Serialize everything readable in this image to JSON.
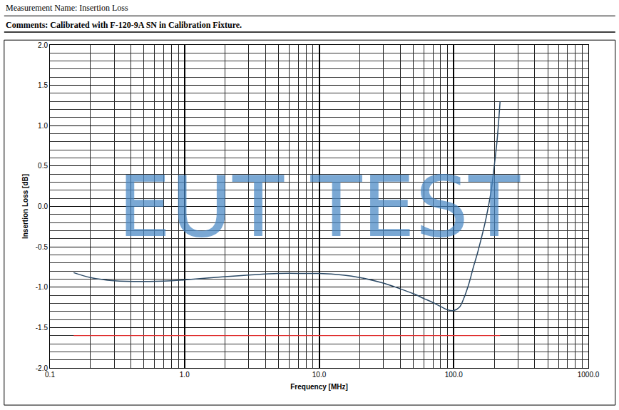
{
  "chart_data": {
    "type": "line",
    "title": "Measurement Name: Insertion Loss",
    "subtitle": "Comments: Calibrated with F-120-9A SN in Calibration Fixture.",
    "x_label": "Frequency [MHz]",
    "y_label": "Insertion Loss [dB]",
    "log": "x",
    "grid": true,
    "xlim": [
      0.1,
      1000
    ],
    "xticks": [
      0.1,
      {
        "value": 1,
        "label": "1.0"
      },
      {
        "value": 10,
        "label": "10.0"
      },
      {
        "value": 100,
        "label": "100.0"
      },
      {
        "value": 1000,
        "label": "1000.0"
      }
    ],
    "ylim": [
      -2,
      2
    ],
    "yticks": [
      {
        "value": -2,
        "label": "-2.0"
      },
      {
        "value": -1.5,
        "label": "-1.5"
      },
      {
        "value": -1,
        "label": "-1.0"
      },
      {
        "value": -0.5,
        "label": "-0.5"
      },
      {
        "value": 0,
        "label": "0.0"
      },
      {
        "value": 0.5,
        "label": "0.5"
      },
      {
        "value": 1,
        "label": "1.0"
      },
      {
        "value": 1.5,
        "label": "1.5"
      },
      {
        "value": 2,
        "label": "2.0"
      }
    ],
    "series": [
      {
        "color": "#2c4a66",
        "x": [
          0.15,
          0.2,
          0.3,
          0.5,
          0.8,
          1,
          2,
          3,
          5,
          8,
          10,
          15,
          20,
          30,
          40,
          50,
          60,
          70,
          80,
          90,
          100,
          110,
          120,
          130,
          140,
          150,
          160,
          170,
          180,
          190,
          200,
          210,
          221
        ],
        "values": [
          -0.82,
          -0.88,
          -0.92,
          -0.93,
          -0.92,
          -0.91,
          -0.87,
          -0.85,
          -0.83,
          -0.83,
          -0.83,
          -0.85,
          -0.88,
          -0.95,
          -1.02,
          -1.08,
          -1.14,
          -1.19,
          -1.24,
          -1.28,
          -1.29,
          -1.25,
          -1.12,
          -0.95,
          -0.75,
          -0.58,
          -0.4,
          -0.22,
          -0.02,
          0.2,
          0.5,
          0.82,
          1.3
        ]
      },
      {
        "color": "#e03030",
        "x": [
          0.15,
          221
        ],
        "values": [
          -1.6,
          -1.6
        ]
      }
    ],
    "annotations": [
      {
        "text": "EUT TEST",
        "x": 10,
        "y": 0
      }
    ]
  }
}
